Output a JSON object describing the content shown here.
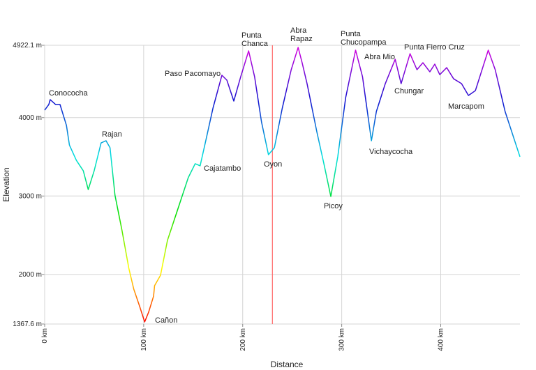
{
  "chart_data": {
    "type": "line",
    "x_label": "Distance",
    "y_label": "Elevation",
    "xlim": [
      0,
      480
    ],
    "ylim": [
      1367.6,
      4922.1
    ],
    "xticks": [
      {
        "value": 0,
        "label": "0 km"
      },
      {
        "value": 100,
        "label": "100 km"
      },
      {
        "value": 200,
        "label": "200 km"
      },
      {
        "value": 300,
        "label": "300 km"
      },
      {
        "value": 400,
        "label": "400 km"
      }
    ],
    "yticks": [
      {
        "value": 1367.6,
        "label": "1367.6 m"
      },
      {
        "value": 2000,
        "label": "2000 m"
      },
      {
        "value": 3000,
        "label": "3000 m"
      },
      {
        "value": 4000,
        "label": "4000 m"
      },
      {
        "value": 4922.1,
        "label": "4922.1 m"
      }
    ],
    "grid": true,
    "color_scale": [
      "#ff0000",
      "#ffff00",
      "#00e000",
      "#00e0e0",
      "#1010d0",
      "#e000e0"
    ],
    "cursor_x": 230,
    "cursor_color": "#ff6a6a",
    "annotations": [
      "Conococha",
      "Rajan",
      "Cañon",
      "Cajatambo",
      "Paso Pacomayo",
      "Punta Chanca",
      "Oyon",
      "Abra Rapaz",
      "Picoy",
      "Punta Chucopampa",
      "Vichaycocha",
      "Abra Mio",
      "Chungar",
      "Punta Fierro Cruz",
      "Marcapom"
    ],
    "series": [
      {
        "name": "Elevation",
        "x": [
          0,
          4.2,
          5.6,
          11,
          15.5,
          22,
          25,
          32,
          39,
          44,
          50,
          57,
          62,
          66,
          71,
          78,
          85,
          90,
          96,
          101,
          105,
          110,
          111,
          117,
          124,
          134.5,
          145,
          152,
          157,
          163,
          170,
          179,
          184,
          191,
          198,
          206,
          212,
          219,
          226,
          232,
          240,
          249,
          256,
          260,
          265,
          275,
          282,
          289,
          296,
          304,
          314,
          321,
          330,
          335,
          344,
          354,
          360,
          369,
          376,
          382,
          389,
          394,
          399,
          406,
          413,
          421,
          428,
          435,
          448,
          455,
          465,
          480
        ],
        "values": [
          4095,
          4167,
          4229,
          4167,
          4167,
          3900,
          3650,
          3455,
          3322,
          3082,
          3322,
          3678,
          3705,
          3616,
          3011,
          2567,
          2078,
          1812,
          1590,
          1394,
          1519,
          1723,
          1856,
          1990,
          2434,
          2834,
          3234,
          3412,
          3385,
          3722,
          4122,
          4540,
          4478,
          4211,
          4522,
          4851,
          4522,
          3944,
          3527,
          3616,
          4122,
          4611,
          4895,
          4700,
          4433,
          3811,
          3412,
          2994,
          3500,
          4255,
          4860,
          4522,
          3705,
          4078,
          4433,
          4744,
          4433,
          4815,
          4611,
          4700,
          4584,
          4682,
          4548,
          4637,
          4495,
          4433,
          4282,
          4344,
          4860,
          4611,
          4078,
          3500
        ]
      }
    ]
  }
}
